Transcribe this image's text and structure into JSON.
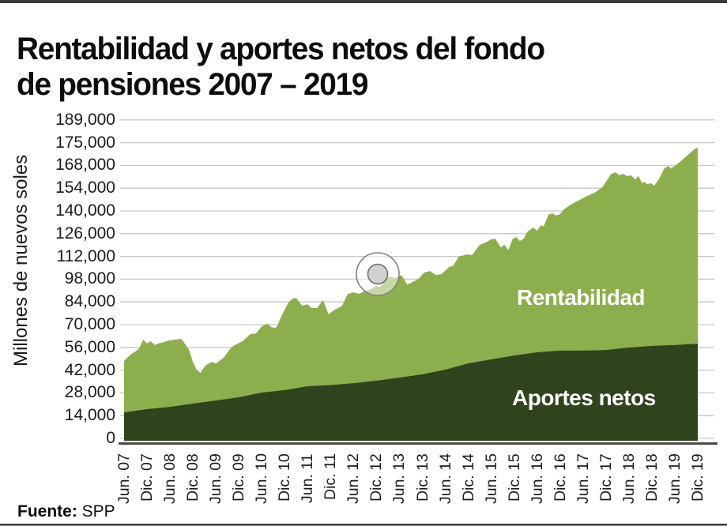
{
  "header": {
    "title_line1": "Rentabilidad y aportes netos del fondo",
    "title_line2": "de pensiones 2007 – 2019"
  },
  "footer": {
    "source_label": "Fuente:",
    "source_value": " SPP"
  },
  "colors": {
    "rentabilidad_green": "#8DAE4D",
    "aportes_dark_green": "#2F431D",
    "gridline": "#c6c6c6",
    "axis_line": "#4b4b4b",
    "page_rule": "#3a3a3a",
    "text": "#1a1a1a",
    "series_label_white": "#ffffff"
  },
  "chart_data": {
    "type": "area",
    "stacked": true,
    "title": "Rentabilidad y aportes netos del fondo de pensiones 2007 – 2019",
    "xlabel": "",
    "ylabel": "Millones de nuevos soles",
    "legend_position": "labels-inside-areas",
    "grid": true,
    "y_ticks": [
      0,
      14000,
      28000,
      42000,
      56000,
      70000,
      84000,
      98000,
      112000,
      126000,
      140000,
      154000,
      168000,
      175000,
      189000
    ],
    "y_tick_labels": [
      "0",
      "14,000",
      "28,000",
      "42,000",
      "56,000",
      "70,000",
      "84,000",
      "98,000",
      "112,000",
      "126,000",
      "140,000",
      "154,000",
      "168,000",
      "175,000",
      "189,000"
    ],
    "categories": [
      "Jun. 07",
      "Dic. 07",
      "Jun. 08",
      "Dic. 08",
      "Jun. 09",
      "Dic. 09",
      "Jun. 10",
      "Dic. 10",
      "Jun. 11",
      "Dic. 11",
      "Jun. 12",
      "Dic. 12",
      "Jun. 13",
      "Dic. 13",
      "Jun. 14",
      "Dic. 14",
      "Jun. 15",
      "Dic. 15",
      "Jun. 16",
      "Dic. 16",
      "Jun. 17",
      "Dic. 17",
      "Jun. 18",
      "Dic. 18",
      "Jun. 19",
      "Dic. 19"
    ],
    "series": [
      {
        "name": "Aportes netos",
        "color": "#2F431D",
        "values": [
          16000,
          18000,
          19400,
          21400,
          23300,
          25300,
          28200,
          29700,
          32100,
          32800,
          34000,
          35500,
          37400,
          39400,
          42300,
          46200,
          48600,
          51000,
          53000,
          54000,
          54000,
          54400,
          55900,
          56900,
          57400,
          58300
        ]
      },
      {
        "name": "Rentabilidad",
        "color": "#8DAE4D",
        "values": [
          31600,
          40500,
          41100,
          25600,
          22700,
          33300,
          40800,
          49500,
          50500,
          45000,
          55900,
          58300,
          62600,
          62100,
          62200,
          66800,
          73900,
          72200,
          74800,
          84000,
          93900,
          102600,
          105800,
          98900,
          110300,
          115100
        ]
      }
    ],
    "total_fund": [
      47600,
      58500,
      60500,
      47000,
      46000,
      58600,
      69000,
      79200,
      82600,
      77800,
      89900,
      93800,
      100000,
      101500,
      104500,
      113000,
      122500,
      123200,
      127800,
      138000,
      147900,
      157000,
      161700,
      155800,
      167700,
      173400
    ],
    "months_span": 150,
    "total_monthly": [
      [
        0,
        47600
      ],
      [
        1,
        50000
      ],
      [
        2,
        52000
      ],
      [
        3,
        53500
      ],
      [
        4,
        55500
      ],
      [
        5,
        60800
      ],
      [
        6,
        58500
      ],
      [
        7,
        59800
      ],
      [
        8,
        57500
      ],
      [
        9,
        58500
      ],
      [
        10.5,
        59300
      ],
      [
        11.5,
        60200
      ],
      [
        13.5,
        60800
      ],
      [
        15,
        61200
      ],
      [
        16,
        58000
      ],
      [
        17,
        54400
      ],
      [
        18,
        47000
      ],
      [
        19,
        42000
      ],
      [
        20,
        40300
      ],
      [
        21,
        44000
      ],
      [
        21.5,
        45200
      ],
      [
        23,
        47100
      ],
      [
        24,
        46000
      ],
      [
        26,
        49600
      ],
      [
        28,
        55900
      ],
      [
        29,
        57500
      ],
      [
        31,
        59800
      ],
      [
        33,
        64200
      ],
      [
        34.5,
        64600
      ],
      [
        36,
        69000
      ],
      [
        37.5,
        70500
      ],
      [
        38.5,
        68500
      ],
      [
        39.5,
        68000
      ],
      [
        40,
        69000
      ],
      [
        41,
        74400
      ],
      [
        42,
        79200
      ],
      [
        43,
        83600
      ],
      [
        44,
        86000
      ],
      [
        45,
        86500
      ],
      [
        46.5,
        81600
      ],
      [
        48,
        82600
      ],
      [
        49,
        80200
      ],
      [
        50.5,
        80200
      ],
      [
        52,
        85100
      ],
      [
        53.5,
        76300
      ],
      [
        55,
        79200
      ],
      [
        56,
        80200
      ],
      [
        57,
        81600
      ],
      [
        58.5,
        88900
      ],
      [
        60,
        89900
      ],
      [
        61.5,
        88900
      ],
      [
        63,
        90900
      ],
      [
        64,
        91400
      ],
      [
        66,
        93800
      ],
      [
        67,
        93300
      ],
      [
        69,
        99600
      ],
      [
        71,
        98700
      ],
      [
        72.5,
        100600
      ],
      [
        74,
        94800
      ],
      [
        75,
        95700
      ],
      [
        77,
        98200
      ],
      [
        78.5,
        102100
      ],
      [
        80,
        103000
      ],
      [
        81.5,
        100600
      ],
      [
        83,
        101100
      ],
      [
        85,
        105500
      ],
      [
        86,
        106000
      ],
      [
        87.5,
        111800
      ],
      [
        89.5,
        113200
      ],
      [
        91,
        112800
      ],
      [
        93,
        119100
      ],
      [
        94.5,
        120500
      ],
      [
        96,
        122500
      ],
      [
        97,
        123000
      ],
      [
        98.5,
        117600
      ],
      [
        99.5,
        119100
      ],
      [
        100.5,
        115700
      ],
      [
        101.5,
        122500
      ],
      [
        102.5,
        123900
      ],
      [
        103.5,
        121500
      ],
      [
        104.5,
        123000
      ],
      [
        105.5,
        127300
      ],
      [
        107,
        129800
      ],
      [
        108,
        127800
      ],
      [
        109,
        131200
      ],
      [
        109.7,
        130400
      ],
      [
        111,
        137700
      ],
      [
        112,
        138500
      ],
      [
        113,
        137200
      ],
      [
        114,
        138000
      ],
      [
        115,
        140900
      ],
      [
        117,
        144200
      ],
      [
        119,
        146600
      ],
      [
        121,
        149100
      ],
      [
        123,
        151200
      ],
      [
        125,
        154500
      ],
      [
        127.4,
        162800
      ],
      [
        128.5,
        163800
      ],
      [
        129.5,
        161900
      ],
      [
        130.5,
        162800
      ],
      [
        131.6,
        161400
      ],
      [
        132.6,
        161900
      ],
      [
        133.6,
        159400
      ],
      [
        134.5,
        161400
      ],
      [
        135.5,
        157000
      ],
      [
        136.1,
        158000
      ],
      [
        136.7,
        156500
      ],
      [
        137.8,
        157000
      ],
      [
        138.6,
        155500
      ],
      [
        139.8,
        159400
      ],
      [
        141.3,
        166200
      ],
      [
        142.3,
        167700
      ],
      [
        142.9,
        166200
      ],
      [
        144,
        167700
      ],
      [
        145.4,
        169100
      ],
      [
        146.9,
        170700
      ],
      [
        148.1,
        171900
      ],
      [
        149.2,
        173100
      ],
      [
        150,
        173400
      ]
    ]
  }
}
